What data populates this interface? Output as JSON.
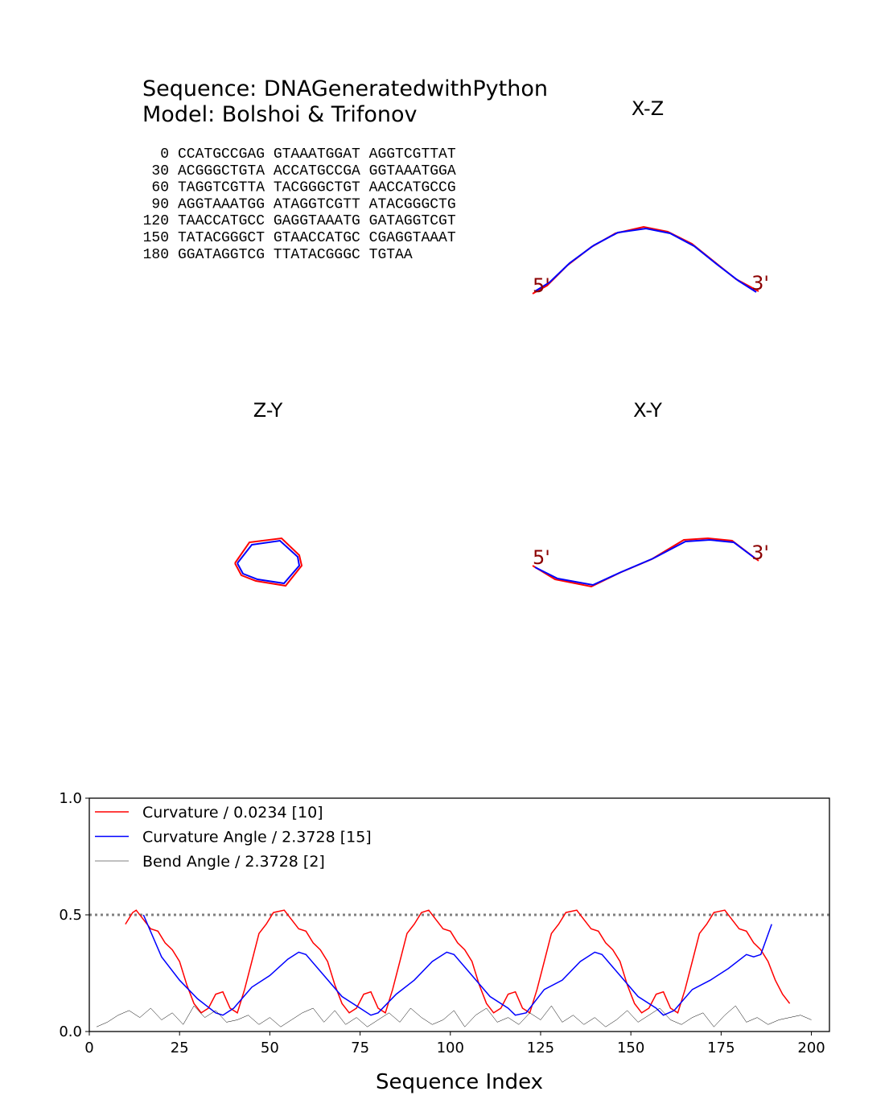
{
  "header": {
    "sequence_title": "Sequence: DNAGeneratedwithPython",
    "model": "Model: Bolshoi & Trifonov"
  },
  "sequence_lines": [
    {
      "index": 0,
      "text": "CCATGCCGAG GTAAATGGAT AGGTCGTTAT"
    },
    {
      "index": 30,
      "text": "ACGGGCTGTA ACCATGCCGA GGTAAATGGA"
    },
    {
      "index": 60,
      "text": "TAGGTCGTTA TACGGGCTGT AACCATGCCG"
    },
    {
      "index": 90,
      "text": "AGGTAAATGG ATAGGTCGTT ATACGGGCTG"
    },
    {
      "index": 120,
      "text": "TAACCATGCC GAGGTAAATG GATAGGTCGT"
    },
    {
      "index": 150,
      "text": "TATACGGGCT GTAACCATGC CGAGGTAAAT"
    },
    {
      "index": 180,
      "text": "GGATAGGTCG TTATACGGGC TGTAA"
    }
  ],
  "chart_data": [
    {
      "type": "projection",
      "title": "X-Z",
      "start_label": "5'",
      "end_label": "3'",
      "label_color": "#8b0000",
      "xlim": [
        0,
        320
      ],
      "ylim": [
        0,
        320
      ],
      "series": [
        {
          "color": "#ff0000",
          "x": [
            17,
            35,
            60,
            90,
            120,
            155,
            185,
            215,
            245,
            270,
            298
          ],
          "values": [
            120,
            130,
            155,
            178,
            195,
            203,
            197,
            182,
            158,
            138,
            123
          ]
        },
        {
          "color": "#0000ff",
          "x": [
            20,
            38,
            63,
            93,
            123,
            158,
            188,
            218,
            248,
            273,
            295
          ],
          "values": [
            123,
            134,
            158,
            180,
            196,
            201,
            195,
            179,
            155,
            136,
            122
          ]
        }
      ]
    },
    {
      "type": "projection",
      "title": "Z-Y",
      "xlim": [
        0,
        320
      ],
      "ylim": [
        0,
        320
      ],
      "series": [
        {
          "color": "#ff0000",
          "x": [
            119,
            137,
            177,
            199,
            202,
            182,
            145,
            127,
            119
          ],
          "values": [
            160,
            186,
            191,
            170,
            157,
            132,
            138,
            145,
            160
          ]
        },
        {
          "color": "#0000ff",
          "x": [
            122,
            140,
            175,
            197,
            199,
            180,
            147,
            129,
            122
          ],
          "values": [
            160,
            183,
            188,
            168,
            157,
            135,
            140,
            147,
            160
          ]
        }
      ]
    },
    {
      "type": "projection",
      "title": "X-Y",
      "start_label": "5'",
      "end_label": "3'",
      "label_color": "#8b0000",
      "xlim": [
        0,
        320
      ],
      "ylim": [
        0,
        320
      ],
      "series": [
        {
          "color": "#ff0000",
          "x": [
            17,
            45,
            90,
            125,
            165,
            205,
            235,
            265,
            298
          ],
          "values": [
            157,
            140,
            131,
            148,
            165,
            189,
            191,
            188,
            163
          ]
        },
        {
          "color": "#0000ff",
          "x": [
            20,
            48,
            92,
            127,
            167,
            207,
            237,
            267,
            295
          ],
          "values": [
            155,
            141,
            133,
            149,
            166,
            187,
            189,
            186,
            165
          ]
        }
      ]
    },
    {
      "type": "line",
      "x_label": "Sequence Index",
      "legend": "upper left",
      "xlim": [
        0,
        205
      ],
      "ylim": [
        0,
        1
      ],
      "xticks": [
        0,
        25,
        50,
        75,
        100,
        125,
        150,
        175,
        200
      ],
      "yticks": [
        {
          "value": 0,
          "label": "0.0"
        },
        {
          "value": 0.5,
          "label": "0.5"
        },
        {
          "value": 1,
          "label": "1.0"
        }
      ],
      "hline": 0.5,
      "hline_color": "#808080",
      "series": [
        {
          "name": "Curvature / 0.0234 [10]",
          "color": "#ff0000",
          "width": 1.5,
          "x": [
            10,
            12,
            13,
            15,
            17,
            19,
            21,
            23,
            25,
            27,
            29,
            31,
            33,
            35,
            37,
            39,
            41,
            43,
            45,
            47,
            49,
            51,
            54,
            56,
            58,
            60,
            62,
            64,
            66,
            68,
            70,
            72,
            74,
            76,
            78,
            80,
            82,
            84,
            86,
            88,
            90,
            92,
            94,
            96,
            98,
            100,
            102,
            104,
            106,
            108,
            110,
            112,
            114,
            116,
            118,
            120,
            122,
            124,
            126,
            128,
            130,
            132,
            135,
            137,
            139,
            141,
            143,
            145,
            147,
            149,
            151,
            153,
            155,
            157,
            159,
            161,
            163,
            165,
            167,
            169,
            171,
            173,
            176,
            178,
            180,
            182,
            184,
            186,
            188,
            190,
            192,
            194
          ],
          "values": [
            0.46,
            0.51,
            0.52,
            0.48,
            0.44,
            0.43,
            0.38,
            0.35,
            0.3,
            0.2,
            0.12,
            0.08,
            0.1,
            0.16,
            0.17,
            0.1,
            0.08,
            0.18,
            0.3,
            0.42,
            0.46,
            0.51,
            0.52,
            0.48,
            0.44,
            0.43,
            0.38,
            0.35,
            0.3,
            0.2,
            0.12,
            0.08,
            0.1,
            0.16,
            0.17,
            0.1,
            0.08,
            0.18,
            0.3,
            0.42,
            0.46,
            0.51,
            0.52,
            0.48,
            0.44,
            0.43,
            0.38,
            0.35,
            0.3,
            0.2,
            0.12,
            0.08,
            0.1,
            0.16,
            0.17,
            0.1,
            0.08,
            0.18,
            0.3,
            0.42,
            0.46,
            0.51,
            0.52,
            0.48,
            0.44,
            0.43,
            0.38,
            0.35,
            0.3,
            0.2,
            0.12,
            0.08,
            0.1,
            0.16,
            0.17,
            0.1,
            0.08,
            0.18,
            0.3,
            0.42,
            0.46,
            0.51,
            0.52,
            0.48,
            0.44,
            0.43,
            0.38,
            0.35,
            0.3,
            0.22,
            0.16,
            0.12
          ]
        },
        {
          "name": "Curvature Angle / 2.3728 [15]",
          "color": "#0000ff",
          "width": 1.5,
          "x": [
            15,
            20,
            25,
            30,
            35,
            37,
            40,
            45,
            50,
            55,
            58,
            60,
            65,
            70,
            75,
            78,
            80,
            85,
            90,
            95,
            99,
            101,
            106,
            111,
            116,
            118,
            121,
            126,
            131,
            136,
            140,
            142,
            147,
            152,
            157,
            159,
            162,
            167,
            172,
            177,
            182,
            184,
            186,
            189
          ],
          "values": [
            0.5,
            0.32,
            0.22,
            0.14,
            0.08,
            0.07,
            0.1,
            0.19,
            0.24,
            0.31,
            0.34,
            0.33,
            0.24,
            0.15,
            0.1,
            0.07,
            0.08,
            0.16,
            0.22,
            0.3,
            0.34,
            0.33,
            0.24,
            0.15,
            0.1,
            0.07,
            0.08,
            0.18,
            0.22,
            0.3,
            0.34,
            0.33,
            0.24,
            0.15,
            0.1,
            0.07,
            0.09,
            0.18,
            0.22,
            0.27,
            0.33,
            0.32,
            0.33,
            0.46
          ]
        },
        {
          "name": "Bend Angle / 2.3728 [2]",
          "color": "#000000",
          "width": 0.5,
          "x": [
            2,
            5,
            8,
            11,
            14,
            17,
            20,
            23,
            26,
            29,
            32,
            35,
            38,
            41,
            44,
            47,
            50,
            53,
            56,
            59,
            62,
            65,
            68,
            71,
            74,
            77,
            80,
            83,
            86,
            89,
            92,
            95,
            98,
            101,
            104,
            107,
            110,
            113,
            116,
            119,
            122,
            125,
            128,
            131,
            134,
            137,
            140,
            143,
            146,
            149,
            152,
            155,
            158,
            161,
            164,
            167,
            170,
            173,
            176,
            179,
            182,
            185,
            188,
            191,
            194,
            197,
            200
          ],
          "values": [
            0.02,
            0.04,
            0.07,
            0.09,
            0.06,
            0.1,
            0.05,
            0.08,
            0.03,
            0.11,
            0.06,
            0.09,
            0.04,
            0.05,
            0.07,
            0.03,
            0.06,
            0.02,
            0.05,
            0.08,
            0.1,
            0.04,
            0.09,
            0.03,
            0.06,
            0.02,
            0.05,
            0.08,
            0.04,
            0.1,
            0.06,
            0.03,
            0.05,
            0.09,
            0.02,
            0.07,
            0.1,
            0.04,
            0.06,
            0.03,
            0.08,
            0.05,
            0.11,
            0.04,
            0.07,
            0.03,
            0.06,
            0.02,
            0.05,
            0.09,
            0.04,
            0.07,
            0.1,
            0.05,
            0.03,
            0.06,
            0.08,
            0.02,
            0.07,
            0.11,
            0.04,
            0.06,
            0.03,
            0.05,
            0.06,
            0.07,
            0.05
          ]
        }
      ]
    }
  ]
}
